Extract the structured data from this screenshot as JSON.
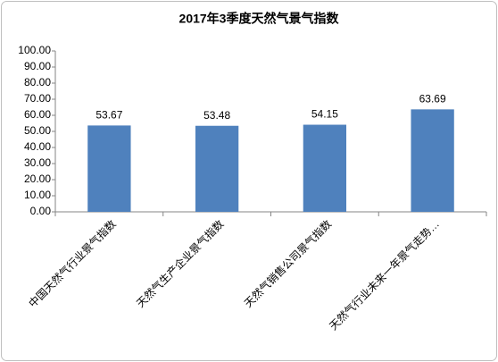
{
  "chart_data": {
    "type": "bar",
    "title": "2017年3季度天然气景气指数",
    "categories": [
      "中国天然气行业景气指数",
      "天然气生产企业景气指数",
      "天然气销售公司景气指数",
      "天然气行业未来一年景气走势…"
    ],
    "values": [
      53.67,
      53.48,
      54.15,
      63.69
    ],
    "color": "#4f81bd",
    "ylim": [
      0,
      100
    ],
    "yticks": [
      {
        "value": 0,
        "label": "0.00"
      },
      {
        "value": 10,
        "label": "10.00"
      },
      {
        "value": 20,
        "label": "20.00"
      },
      {
        "value": 30,
        "label": "30.00"
      },
      {
        "value": 40,
        "label": "40.00"
      },
      {
        "value": 50,
        "label": "50.00"
      },
      {
        "value": 60,
        "label": "60.00"
      },
      {
        "value": 70,
        "label": "70.00"
      },
      {
        "value": 80,
        "label": "80.00"
      },
      {
        "value": 90,
        "label": "90.00"
      },
      {
        "value": 100,
        "label": "100.00"
      }
    ],
    "grid": false
  }
}
